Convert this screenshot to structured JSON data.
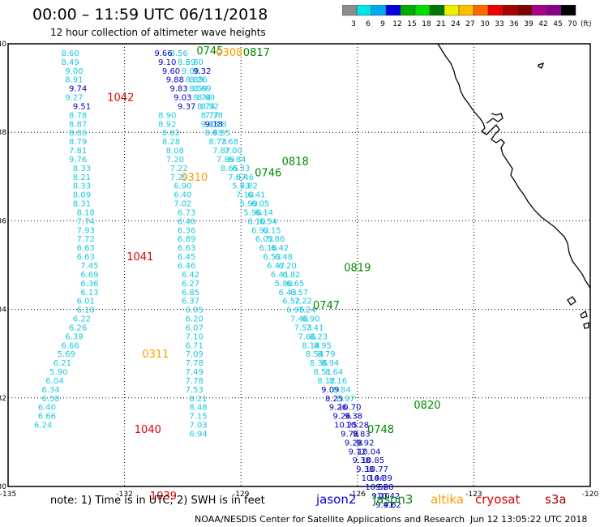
{
  "header": {
    "title": "00:00 – 11:59 UTC 06/11/2018",
    "subtitle": "12 hour collection of altimeter wave heights"
  },
  "scale": {
    "unit": "(ft)",
    "levels": [
      {
        "label": "3",
        "color": "#8c8c8c"
      },
      {
        "label": "6",
        "color": "#00e5e5"
      },
      {
        "label": "9",
        "color": "#00aaee"
      },
      {
        "label": "12",
        "color": "#0000dd"
      },
      {
        "label": "15",
        "color": "#00aa00"
      },
      {
        "label": "18",
        "color": "#00dd00"
      },
      {
        "label": "21",
        "color": "#007700"
      },
      {
        "label": "24",
        "color": "#eeee00"
      },
      {
        "label": "27",
        "color": "#ffbb00"
      },
      {
        "label": "30",
        "color": "#ff6600"
      },
      {
        "label": "33",
        "color": "#ee0000"
      },
      {
        "label": "36",
        "color": "#aa0000"
      },
      {
        "label": "39",
        "color": "#800000"
      },
      {
        "label": "42",
        "color": "#aa0088"
      },
      {
        "label": "45",
        "color": "#880088"
      },
      {
        "label": "70",
        "color": "#000000"
      }
    ]
  },
  "axes": {
    "lat_labels": [
      "40",
      "38",
      "36",
      "34",
      "32",
      "30"
    ],
    "lon_labels": [
      "-135",
      "-132",
      "-129",
      "-126",
      "-123",
      "-120"
    ]
  },
  "colors": {
    "cyan": "#18c8e0",
    "blue": "#0000c0",
    "green": "#008800",
    "orange": "#ff9900",
    "red": "#dd0000"
  },
  "tracks": [
    {
      "id": "t1",
      "color": "cyan",
      "points": [
        [
          39.8,
          -133.4,
          "8.60"
        ],
        [
          39.6,
          -133.4,
          "8.49"
        ],
        [
          39.4,
          -133.3,
          "9.00"
        ],
        [
          39.2,
          -133.3,
          "8.91"
        ],
        [
          38.8,
          -133.3,
          "9.27"
        ],
        [
          38.4,
          -133.2,
          "8.78"
        ],
        [
          38.2,
          -133.2,
          "8.87"
        ],
        [
          38.0,
          -133.2,
          "8.86"
        ],
        [
          37.8,
          -133.2,
          "8.79"
        ],
        [
          37.6,
          -133.2,
          "7.81"
        ],
        [
          37.4,
          -133.2,
          "9.76"
        ],
        [
          37.2,
          -133.1,
          "8.33"
        ],
        [
          37.0,
          -133.1,
          "8.21"
        ],
        [
          36.8,
          -133.1,
          "8.33"
        ],
        [
          36.6,
          -133.1,
          "8.09"
        ],
        [
          36.4,
          -133.1,
          "8.31"
        ],
        [
          36.2,
          -133.0,
          "8.18"
        ],
        [
          36.0,
          -133.0,
          "7.74"
        ],
        [
          35.8,
          -133.0,
          "7.93"
        ],
        [
          35.6,
          -133.0,
          "7.72"
        ],
        [
          35.4,
          -133.0,
          "6.63"
        ],
        [
          35.2,
          -133.0,
          "6.63"
        ],
        [
          35.0,
          -132.9,
          "7.45"
        ],
        [
          34.8,
          -132.9,
          "6.69"
        ],
        [
          34.6,
          -132.9,
          "6.36"
        ],
        [
          34.4,
          -132.9,
          "6.13"
        ],
        [
          34.2,
          -133.0,
          "6.01"
        ],
        [
          34.0,
          -133.0,
          "6.10"
        ],
        [
          33.8,
          -133.1,
          "6.22"
        ],
        [
          33.6,
          -133.2,
          "6.26"
        ],
        [
          33.4,
          -133.3,
          "6.39"
        ],
        [
          33.2,
          -133.4,
          "6.66"
        ],
        [
          33.0,
          -133.5,
          "5.69"
        ],
        [
          32.8,
          -133.6,
          "6.21"
        ],
        [
          32.6,
          -133.7,
          "5.90"
        ],
        [
          32.4,
          -133.8,
          "6.04"
        ],
        [
          32.2,
          -133.9,
          "6.34"
        ],
        [
          32.0,
          -133.9,
          "6.58"
        ],
        [
          31.8,
          -134.0,
          "6.40"
        ],
        [
          31.6,
          -134.0,
          "6.66"
        ],
        [
          31.4,
          -134.1,
          "6.24"
        ]
      ]
    },
    {
      "id": "t1b",
      "color": "blue",
      "points": [
        [
          39.0,
          -133.2,
          "9.74"
        ],
        [
          38.6,
          -133.1,
          "9.51"
        ]
      ]
    },
    {
      "id": "t2",
      "color": "cyan",
      "points": [
        [
          39.8,
          -130.6,
          "8.56"
        ],
        [
          39.6,
          -130.4,
          "8.59"
        ],
        [
          39.4,
          -130.3,
          "9.08"
        ],
        [
          39.2,
          -130.2,
          "8.89"
        ],
        [
          39.0,
          -130.1,
          "8.59"
        ],
        [
          38.8,
          -130.0,
          "8.74"
        ],
        [
          38.6,
          -129.9,
          "8.74"
        ],
        [
          38.4,
          -129.8,
          "8.77"
        ],
        [
          38.2,
          -129.8,
          "9.13"
        ],
        [
          38.0,
          -129.7,
          "8.43"
        ],
        [
          37.8,
          -129.6,
          "8.73"
        ],
        [
          37.6,
          -129.5,
          "7.87"
        ],
        [
          37.4,
          -129.4,
          "7.89"
        ],
        [
          37.2,
          -129.3,
          "8.65"
        ],
        [
          37.0,
          -129.1,
          "7.07"
        ],
        [
          36.8,
          -129.0,
          "5.73"
        ],
        [
          36.6,
          -128.9,
          "7.10"
        ],
        [
          36.4,
          -128.8,
          "5.99"
        ],
        [
          36.2,
          -128.7,
          "5.96"
        ],
        [
          36.0,
          -128.6,
          "6.10"
        ],
        [
          35.8,
          -128.5,
          "6.92"
        ],
        [
          35.6,
          -128.4,
          "6.03"
        ],
        [
          35.4,
          -128.3,
          "6.16"
        ],
        [
          35.2,
          -128.2,
          "6.53"
        ],
        [
          35.0,
          -128.1,
          "6.47"
        ],
        [
          34.8,
          -128.0,
          "6.41"
        ],
        [
          34.6,
          -127.9,
          "5.80"
        ],
        [
          34.4,
          -127.8,
          "6.43"
        ],
        [
          34.2,
          -127.7,
          "6.52"
        ],
        [
          34.0,
          -127.6,
          "6.95"
        ],
        [
          33.8,
          -127.5,
          "7.48"
        ],
        [
          33.6,
          -127.4,
          "7.53"
        ],
        [
          33.4,
          -127.3,
          "7.66"
        ],
        [
          33.2,
          -127.2,
          "8.14"
        ],
        [
          33.0,
          -127.1,
          "8.54"
        ],
        [
          32.8,
          -127.0,
          "8.36"
        ],
        [
          32.6,
          -126.9,
          "8.51"
        ],
        [
          32.4,
          -126.8,
          "8.12"
        ]
      ]
    },
    {
      "id": "t2b",
      "color": "blue",
      "points": [
        [
          39.8,
          -131.0,
          "9.66"
        ],
        [
          39.6,
          -130.9,
          "9.10"
        ],
        [
          39.4,
          -130.8,
          "9.60"
        ],
        [
          39.2,
          -130.7,
          "9.88"
        ],
        [
          39.0,
          -130.6,
          "9.83"
        ],
        [
          38.8,
          -130.5,
          "9.03"
        ],
        [
          38.6,
          -130.4,
          "9.37"
        ],
        [
          38.2,
          -129.7,
          "9.18"
        ]
      ]
    },
    {
      "id": "t2c",
      "color": "blue",
      "points": [
        [
          32.2,
          -126.7,
          "9.09"
        ],
        [
          32.0,
          -126.6,
          "8.25"
        ],
        [
          31.8,
          -126.5,
          "9.26"
        ],
        [
          31.6,
          -126.4,
          "9.26"
        ],
        [
          31.4,
          -126.3,
          "10.25"
        ],
        [
          31.2,
          -126.2,
          "9.78"
        ],
        [
          31.0,
          -126.1,
          "9.28"
        ],
        [
          30.8,
          -126.0,
          "9.12"
        ],
        [
          30.6,
          -125.9,
          "9.38"
        ],
        [
          30.4,
          -125.8,
          "9.38"
        ],
        [
          30.2,
          -125.6,
          "10.44"
        ],
        [
          30.0,
          -125.5,
          "10.52"
        ],
        [
          29.8,
          -125.4,
          "9.10"
        ],
        [
          29.6,
          -125.3,
          "9.41"
        ]
      ]
    },
    {
      "id": "t3",
      "color": "cyan",
      "points": [
        [
          39.6,
          -130.2,
          "8.80"
        ],
        [
          39.2,
          -130.1,
          "8.26"
        ],
        [
          39.0,
          -130.0,
          "8.69"
        ],
        [
          38.8,
          -129.9,
          "8.69"
        ],
        [
          38.6,
          -129.8,
          "8.52"
        ],
        [
          38.4,
          -129.7,
          "7.78"
        ],
        [
          38.2,
          -129.6,
          "8.28"
        ],
        [
          38.0,
          -129.5,
          "8.35"
        ],
        [
          37.8,
          -129.3,
          "7.68"
        ],
        [
          37.6,
          -129.2,
          "7.00"
        ],
        [
          37.4,
          -129.1,
          "6.84"
        ],
        [
          37.2,
          -129.0,
          "6.33"
        ],
        [
          37.0,
          -128.9,
          "6.46"
        ],
        [
          36.8,
          -128.8,
          "6.82"
        ],
        [
          36.6,
          -128.6,
          "6.41"
        ],
        [
          36.4,
          -128.5,
          "6.05"
        ],
        [
          36.2,
          -128.4,
          "6.14"
        ],
        [
          36.0,
          -128.3,
          "6.54"
        ],
        [
          35.8,
          -128.2,
          "6.15"
        ],
        [
          35.6,
          -128.1,
          "5.86"
        ],
        [
          35.4,
          -128.0,
          "6.42"
        ],
        [
          35.2,
          -127.9,
          "6.48"
        ],
        [
          35.0,
          -127.8,
          "6.20"
        ],
        [
          34.8,
          -127.7,
          "6.82"
        ],
        [
          34.6,
          -127.6,
          "6.65"
        ],
        [
          34.4,
          -127.5,
          "6.57"
        ],
        [
          34.2,
          -127.4,
          "7.22"
        ],
        [
          34.0,
          -127.3,
          "7.24"
        ],
        [
          33.8,
          -127.2,
          "6.90"
        ],
        [
          33.6,
          -127.1,
          "7.41"
        ],
        [
          33.4,
          -127.0,
          "8.23"
        ],
        [
          33.2,
          -126.9,
          "8.95"
        ],
        [
          33.0,
          -126.8,
          "8.79"
        ],
        [
          32.8,
          -126.7,
          "8.94"
        ],
        [
          32.6,
          -126.6,
          "8.64"
        ],
        [
          32.4,
          -126.5,
          "8.16"
        ],
        [
          32.2,
          -126.4,
          "8.84"
        ],
        [
          32.0,
          -126.3,
          "8.97"
        ]
      ]
    },
    {
      "id": "t3b",
      "color": "blue",
      "points": [
        [
          39.4,
          -130.0,
          "9.32"
        ],
        [
          31.8,
          -126.2,
          "10.70"
        ],
        [
          31.6,
          -126.1,
          "9.38"
        ],
        [
          31.4,
          -126.0,
          "10.28"
        ],
        [
          31.2,
          -125.9,
          "9.83"
        ],
        [
          31.0,
          -125.8,
          "9.92"
        ],
        [
          30.8,
          -125.7,
          "10.04"
        ],
        [
          30.6,
          -125.6,
          "10.85"
        ],
        [
          30.4,
          -125.5,
          "10.77"
        ],
        [
          30.2,
          -125.4,
          "10.39"
        ],
        [
          30.0,
          -125.3,
          "9.88"
        ],
        [
          29.8,
          -125.2,
          "10.42"
        ],
        [
          29.6,
          -125.1,
          "9.62"
        ]
      ]
    },
    {
      "id": "t4",
      "color": "cyan",
      "points": [
        [
          38.4,
          -130.9,
          "8.90"
        ],
        [
          38.2,
          -130.9,
          "8.92"
        ],
        [
          38.0,
          -130.8,
          "8.82"
        ],
        [
          37.8,
          -130.8,
          "8.28"
        ],
        [
          37.6,
          -130.7,
          "8.08"
        ],
        [
          37.4,
          -130.7,
          "7.20"
        ],
        [
          37.2,
          -130.6,
          "7.22"
        ],
        [
          37.0,
          -130.6,
          "7.29"
        ],
        [
          36.8,
          -130.5,
          "6.90"
        ],
        [
          36.6,
          -130.5,
          "6.40"
        ],
        [
          36.4,
          -130.5,
          "7.02"
        ],
        [
          36.2,
          -130.4,
          "6.73"
        ],
        [
          36.0,
          -130.4,
          "6.40"
        ],
        [
          35.8,
          -130.4,
          "6.36"
        ],
        [
          35.6,
          -130.4,
          "6.89"
        ],
        [
          35.4,
          -130.4,
          "6.63"
        ],
        [
          35.2,
          -130.4,
          "6.45"
        ],
        [
          35.0,
          -130.4,
          "6.46"
        ],
        [
          34.8,
          -130.3,
          "6.42"
        ],
        [
          34.6,
          -130.3,
          "6.27"
        ],
        [
          34.4,
          -130.3,
          "6.85"
        ],
        [
          34.2,
          -130.3,
          "6.37"
        ],
        [
          34.0,
          -130.2,
          "6.05"
        ],
        [
          33.8,
          -130.2,
          "6.20"
        ],
        [
          33.6,
          -130.2,
          "6.07"
        ],
        [
          33.4,
          -130.2,
          "7.10"
        ],
        [
          33.2,
          -130.2,
          "6.71"
        ],
        [
          33.0,
          -130.2,
          "7.09"
        ],
        [
          32.8,
          -130.2,
          "7.78"
        ],
        [
          32.6,
          -130.2,
          "7.49"
        ],
        [
          32.4,
          -130.2,
          "7.78"
        ],
        [
          32.2,
          -130.2,
          "7.53"
        ],
        [
          32.0,
          -130.1,
          "8.21"
        ],
        [
          31.8,
          -130.1,
          "8.48"
        ],
        [
          31.6,
          -130.1,
          "7.15"
        ],
        [
          31.4,
          -130.1,
          "7.03"
        ],
        [
          31.2,
          -130.1,
          "6.94"
        ]
      ]
    }
  ],
  "time_labels": [
    {
      "text": "0745",
      "lat": 39.85,
      "lon": -129.8,
      "color": "green"
    },
    {
      "text": "0308",
      "lat": 39.82,
      "lon": -129.3,
      "color": "orange"
    },
    {
      "text": "0817",
      "lat": 39.82,
      "lon": -128.6,
      "color": "green"
    },
    {
      "text": "1042",
      "lat": 38.8,
      "lon": -132.1,
      "color": "red"
    },
    {
      "text": "0818",
      "lat": 37.35,
      "lon": -127.6,
      "color": "green"
    },
    {
      "text": "0746",
      "lat": 37.1,
      "lon": -128.3,
      "color": "green"
    },
    {
      "text": "0310",
      "lat": 37.0,
      "lon": -130.2,
      "color": "orange"
    },
    {
      "text": "1041",
      "lat": 35.2,
      "lon": -131.6,
      "color": "red"
    },
    {
      "text": "0819",
      "lat": 34.95,
      "lon": -126.0,
      "color": "green"
    },
    {
      "text": "0747",
      "lat": 34.1,
      "lon": -126.8,
      "color": "green"
    },
    {
      "text": "0311",
      "lat": 33.0,
      "lon": -131.2,
      "color": "orange"
    },
    {
      "text": "0820",
      "lat": 31.85,
      "lon": -124.2,
      "color": "green"
    },
    {
      "text": "0748",
      "lat": 31.3,
      "lon": -125.4,
      "color": "green"
    },
    {
      "text": "1040",
      "lat": 31.3,
      "lon": -131.4,
      "color": "red"
    },
    {
      "text": "1039",
      "lat": 29.8,
      "lon": -131.0,
      "color": "red"
    }
  ],
  "footer": {
    "note": "note:  1) Time is in UTC;  2) SWH is in feet",
    "satellites": [
      {
        "name": "jason2",
        "color": "#0000dd"
      },
      {
        "name": "jason3",
        "color": "#008800"
      },
      {
        "name": "altika",
        "color": "#ff9900"
      },
      {
        "name": "cryosat",
        "color": "#dd0000"
      },
      {
        "name": "s3a",
        "color": "#aa0000"
      }
    ],
    "credit": "NOAA/NESDIS Center for Satellite Applications and Research",
    "timestamp": "Jun 12 13:05:22 UTC 2018"
  }
}
